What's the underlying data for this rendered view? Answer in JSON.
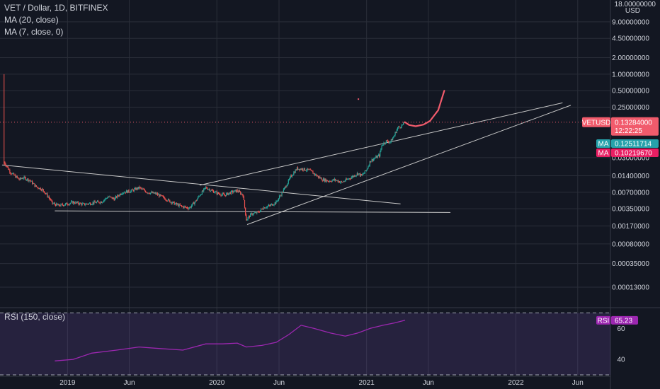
{
  "header": {
    "title": "VET / Dollar, 1D, BITFINEX",
    "ma20": "MA (20, close)",
    "ma7": "MA (7, close, 0)"
  },
  "rsi_panel": {
    "label": "RSI (150, close)",
    "badge": "RSI",
    "value": "65.23",
    "ticks": [
      "60",
      "40"
    ],
    "tick_values": [
      60,
      40
    ],
    "range": [
      30,
      72
    ],
    "color": "#9c27b0"
  },
  "price_axis": {
    "unit": "USD",
    "top_label": "18.00000000",
    "ticks": [
      "9.00000000",
      "4.50000000",
      "2.00000000",
      "1.00000000",
      "0.50000000",
      "0.25000000",
      "0.03000000",
      "0.01400000",
      "0.00700000",
      "0.00350000",
      "0.00170000",
      "0.00080000",
      "0.00035000",
      "0.00013000"
    ],
    "tick_values": [
      9,
      4.5,
      2,
      1,
      0.5,
      0.25,
      0.03,
      0.014,
      0.007,
      0.0035,
      0.0017,
      0.0008,
      0.00035,
      0.00013
    ],
    "range": [
      6e-05,
      20
    ],
    "log": true
  },
  "time_axis": {
    "ticks": [
      "2019",
      "Jun",
      "2020",
      "Jun",
      "2021",
      "Jun",
      "2022",
      "Jun"
    ],
    "tick_dates": [
      "2019-01-01",
      "2019-06-01",
      "2020-01-01",
      "2020-06-01",
      "2021-01-01",
      "2021-06-01",
      "2022-01-01",
      "2022-06-01"
    ],
    "start": "2018-07-20",
    "end": "2022-08-20"
  },
  "price_badges": [
    {
      "label": "VETUSD",
      "value": "0.13284000",
      "sub": "12:22:25",
      "price": 0.13284,
      "color": "#f15b6c"
    },
    {
      "label": "MA",
      "value": "0.12511714",
      "price": 0.1251,
      "color": "#26a2ab"
    },
    {
      "label": "MA",
      "value": "0.10219670",
      "price": 0.1022,
      "color": "#e91e63"
    }
  ],
  "colors": {
    "background": "#131722",
    "grid": "#2a2e39",
    "up": "#26a69a",
    "down": "#ef5350",
    "trendline": "#c8c8c8",
    "projection": "#f15b6c",
    "rsi": "#9c27b0"
  },
  "chart_data": {
    "type": "candlestick",
    "series_price": [
      [
        "2018-07-30",
        0.025
      ],
      [
        "2018-08-05",
        0.021
      ],
      [
        "2018-08-15",
        0.016
      ],
      [
        "2018-08-25",
        0.014
      ],
      [
        "2018-09-05",
        0.012
      ],
      [
        "2018-09-15",
        0.013
      ],
      [
        "2018-10-01",
        0.0115
      ],
      [
        "2018-10-15",
        0.009
      ],
      [
        "2018-11-01",
        0.0078
      ],
      [
        "2018-11-15",
        0.0058
      ],
      [
        "2018-11-25",
        0.0044
      ],
      [
        "2018-12-10",
        0.004
      ],
      [
        "2018-12-25",
        0.0042
      ],
      [
        "2019-01-15",
        0.0046
      ],
      [
        "2019-02-10",
        0.0042
      ],
      [
        "2019-03-05",
        0.0045
      ],
      [
        "2019-03-25",
        0.0047
      ],
      [
        "2019-04-10",
        0.0058
      ],
      [
        "2019-04-25",
        0.0053
      ],
      [
        "2019-05-15",
        0.007
      ],
      [
        "2019-06-05",
        0.0074
      ],
      [
        "2019-06-25",
        0.0085
      ],
      [
        "2019-07-15",
        0.007
      ],
      [
        "2019-08-05",
        0.0066
      ],
      [
        "2019-08-25",
        0.0055
      ],
      [
        "2019-09-15",
        0.0045
      ],
      [
        "2019-10-05",
        0.0039
      ],
      [
        "2019-10-25",
        0.0036
      ],
      [
        "2019-11-10",
        0.0048
      ],
      [
        "2019-11-20",
        0.0062
      ],
      [
        "2019-12-05",
        0.0085
      ],
      [
        "2019-12-20",
        0.0075
      ],
      [
        "2020-01-05",
        0.0066
      ],
      [
        "2020-01-20",
        0.0062
      ],
      [
        "2020-02-05",
        0.007
      ],
      [
        "2020-02-20",
        0.0075
      ],
      [
        "2020-03-05",
        0.0062
      ],
      [
        "2020-03-13",
        0.0022
      ],
      [
        "2020-03-25",
        0.0028
      ],
      [
        "2020-04-10",
        0.003
      ],
      [
        "2020-04-25",
        0.0037
      ],
      [
        "2020-05-10",
        0.004
      ],
      [
        "2020-05-25",
        0.0046
      ],
      [
        "2020-06-10",
        0.0072
      ],
      [
        "2020-06-20",
        0.0098
      ],
      [
        "2020-07-01",
        0.014
      ],
      [
        "2020-07-15",
        0.019
      ],
      [
        "2020-07-30",
        0.0185
      ],
      [
        "2020-08-15",
        0.0175
      ],
      [
        "2020-09-01",
        0.014
      ],
      [
        "2020-09-15",
        0.012
      ],
      [
        "2020-10-01",
        0.0112
      ],
      [
        "2020-10-15",
        0.0118
      ],
      [
        "2020-11-01",
        0.0106
      ],
      [
        "2020-11-15",
        0.012
      ],
      [
        "2020-12-01",
        0.014
      ],
      [
        "2020-12-10",
        0.0155
      ],
      [
        "2020-12-20",
        0.014
      ],
      [
        "2021-01-01",
        0.018
      ],
      [
        "2021-01-10",
        0.026
      ],
      [
        "2021-01-20",
        0.029
      ],
      [
        "2021-02-01",
        0.033
      ],
      [
        "2021-02-08",
        0.052
      ],
      [
        "2021-02-18",
        0.06
      ],
      [
        "2021-02-28",
        0.058
      ],
      [
        "2021-03-08",
        0.072
      ],
      [
        "2021-03-18",
        0.105
      ],
      [
        "2021-03-28",
        0.115
      ],
      [
        "2021-04-05",
        0.1328
      ]
    ],
    "series_rsi": [
      [
        "2018-12-01",
        39
      ],
      [
        "2019-01-15",
        40
      ],
      [
        "2019-03-01",
        44
      ],
      [
        "2019-05-01",
        46
      ],
      [
        "2019-06-25",
        48
      ],
      [
        "2019-08-15",
        47
      ],
      [
        "2019-10-10",
        46
      ],
      [
        "2019-12-05",
        50
      ],
      [
        "2020-01-15",
        50
      ],
      [
        "2020-02-20",
        50.5
      ],
      [
        "2020-03-13",
        48
      ],
      [
        "2020-04-20",
        49
      ],
      [
        "2020-05-25",
        51
      ],
      [
        "2020-06-25",
        56
      ],
      [
        "2020-07-25",
        62
      ],
      [
        "2020-08-25",
        60
      ],
      [
        "2020-10-05",
        57
      ],
      [
        "2020-11-10",
        55
      ],
      [
        "2020-12-10",
        57
      ],
      [
        "2021-01-10",
        60
      ],
      [
        "2021-02-10",
        62
      ],
      [
        "2021-03-10",
        63.5
      ],
      [
        "2021-04-05",
        65.23
      ]
    ],
    "ma_levels": [
      0.12511714,
      0.1021967
    ],
    "current_price": 0.13284,
    "trendlines": [
      {
        "from": [
          "2018-07-25",
          0.022
        ],
        "to": [
          "2021-03-25",
          0.0043
        ]
      },
      {
        "from": [
          "2018-12-01",
          0.0032
        ],
        "to": [
          "2021-07-25",
          0.003
        ]
      },
      {
        "from": [
          "2019-11-20",
          0.0094
        ],
        "to": [
          "2022-04-25",
          0.3
        ]
      },
      {
        "from": [
          "2020-03-15",
          0.0018
        ],
        "to": [
          "2022-05-15",
          0.27
        ]
      }
    ],
    "projection": [
      [
        "2021-04-05",
        0.13284
      ],
      [
        "2021-04-15",
        0.118
      ],
      [
        "2021-05-01",
        0.112
      ],
      [
        "2021-05-20",
        0.12
      ],
      [
        "2021-06-05",
        0.14
      ],
      [
        "2021-06-25",
        0.22
      ],
      [
        "2021-07-10",
        0.5
      ]
    ]
  }
}
